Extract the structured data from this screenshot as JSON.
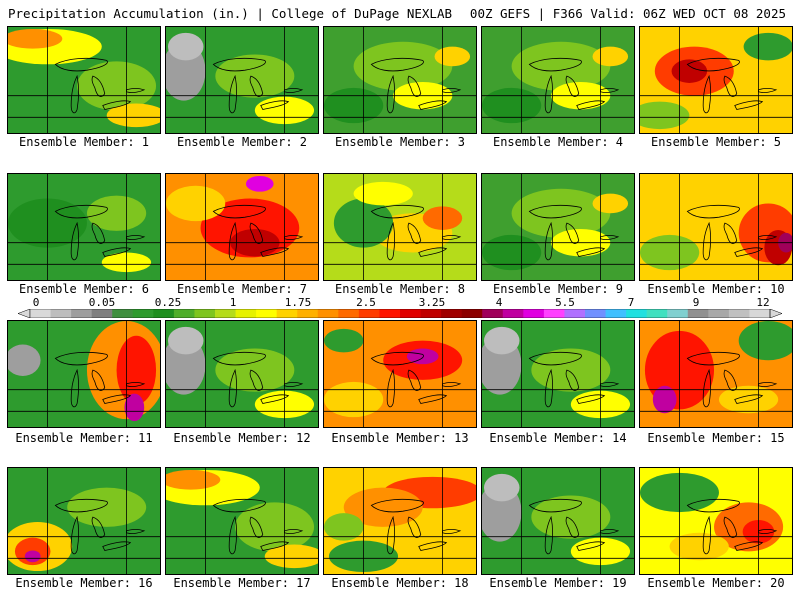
{
  "header": {
    "title": "Precipitation Accumulation (in.) | College of DuPage NEXLAB",
    "run_info": "00Z GEFS | F366 Valid: 06Z WED OCT 08 2025"
  },
  "members": [
    {
      "label": "Ensemble Member: 1",
      "scheme": "green-warm-north"
    },
    {
      "label": "Ensemble Member: 2",
      "scheme": "green-gray-west"
    },
    {
      "label": "Ensemble Member: 3",
      "scheme": "green-mix"
    },
    {
      "label": "Ensemble Member: 4",
      "scheme": "green-mix"
    },
    {
      "label": "Ensemble Member: 5",
      "scheme": "yellow-red-center"
    },
    {
      "label": "Ensemble Member: 6",
      "scheme": "green-dry"
    },
    {
      "label": "Ensemble Member: 7",
      "scheme": "red-heavy"
    },
    {
      "label": "Ensemble Member: 8",
      "scheme": "yellow-mix"
    },
    {
      "label": "Ensemble Member: 9",
      "scheme": "green-mix"
    },
    {
      "label": "Ensemble Member: 10",
      "scheme": "red-east"
    },
    {
      "label": "Ensemble Member: 11",
      "scheme": "red-east-magenta"
    },
    {
      "label": "Ensemble Member: 12",
      "scheme": "green-gray-west"
    },
    {
      "label": "Ensemble Member: 13",
      "scheme": "red-center-magenta"
    },
    {
      "label": "Ensemble Member: 14",
      "scheme": "green-gray-west"
    },
    {
      "label": "Ensemble Member: 15",
      "scheme": "red-west-magenta"
    },
    {
      "label": "Ensemble Member: 16",
      "scheme": "green-red-southwest"
    },
    {
      "label": "Ensemble Member: 17",
      "scheme": "green-warm-north"
    },
    {
      "label": "Ensemble Member: 18",
      "scheme": "red-band-north"
    },
    {
      "label": "Ensemble Member: 19",
      "scheme": "green-gray-west"
    },
    {
      "label": "Ensemble Member: 20",
      "scheme": "yellow-red-east"
    }
  ],
  "colorbar": {
    "tick_labels": [
      "0",
      "0.05",
      "0.25",
      "1",
      "1.75",
      "2.5",
      "3.25",
      "4",
      "5.5",
      "7",
      "9",
      "12"
    ],
    "colors": [
      "#d9d9d9",
      "#bdbdbd",
      "#9e9e9e",
      "#7f7f7f",
      "#3f8f3f",
      "#2e9b2e",
      "#1f8f1f",
      "#4fae2a",
      "#7ec51f",
      "#b5dc1a",
      "#e6f200",
      "#ffff00",
      "#ffd200",
      "#ffb000",
      "#ff9000",
      "#ff6a00",
      "#ff3c00",
      "#ff1400",
      "#e00000",
      "#c00000",
      "#a00000",
      "#8c0000",
      "#a0005a",
      "#c000a0",
      "#e000e0",
      "#ff40ff",
      "#b070ff",
      "#7090ff",
      "#40c0ff",
      "#20e0e0",
      "#40e0c0",
      "#80d0d0",
      "#909090",
      "#a8a8a8",
      "#c0c0c0",
      "#d8d8d8"
    ]
  }
}
